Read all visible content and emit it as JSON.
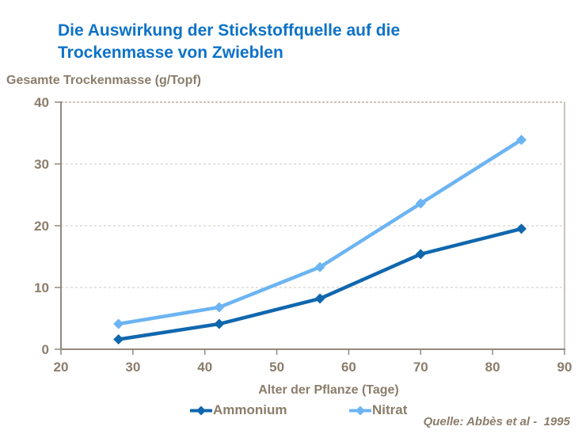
{
  "header": {
    "title_line1": "Die Auswirkung der Stickstoffquelle auf die",
    "title_line2": "Trockenmasse von Zwieblen"
  },
  "colors": {
    "title": "#0D72C8",
    "text_brown": "#8B7D6B",
    "axis": "#92897D",
    "gridline": "#D6D3CD",
    "plot_border": "#B8B0A4",
    "ammonium": "#1067AE",
    "nitrat": "#6CB4F2"
  },
  "chart_data": {
    "type": "line",
    "title": "Die Auswirkung der Stickstoffquelle auf die Trockenmasse von Zwieblen",
    "ylabel": "Gesamte Trockenmasse (g/Topf)",
    "xlabel": "Alter der Pflanze (Tage)",
    "x": [
      28,
      42,
      56,
      70,
      84
    ],
    "series": [
      {
        "name": "Ammonium",
        "color": "#1067AE",
        "values": [
          1.6,
          4.1,
          8.2,
          15.4,
          19.5
        ]
      },
      {
        "name": "Nitrat",
        "color": "#6CB4F2",
        "values": [
          4.1,
          6.8,
          13.3,
          23.6,
          33.9
        ]
      }
    ],
    "xlim": [
      20,
      90
    ],
    "ylim": [
      0,
      40
    ],
    "x_ticks": [
      20,
      30,
      40,
      50,
      60,
      70,
      80,
      90
    ],
    "y_ticks": [
      0,
      10,
      20,
      30,
      40
    ],
    "grid": "horizontal-dashed",
    "legend_position": "bottom",
    "marker": "diamond"
  },
  "source": "Quelle: Abbès et al -  1995"
}
